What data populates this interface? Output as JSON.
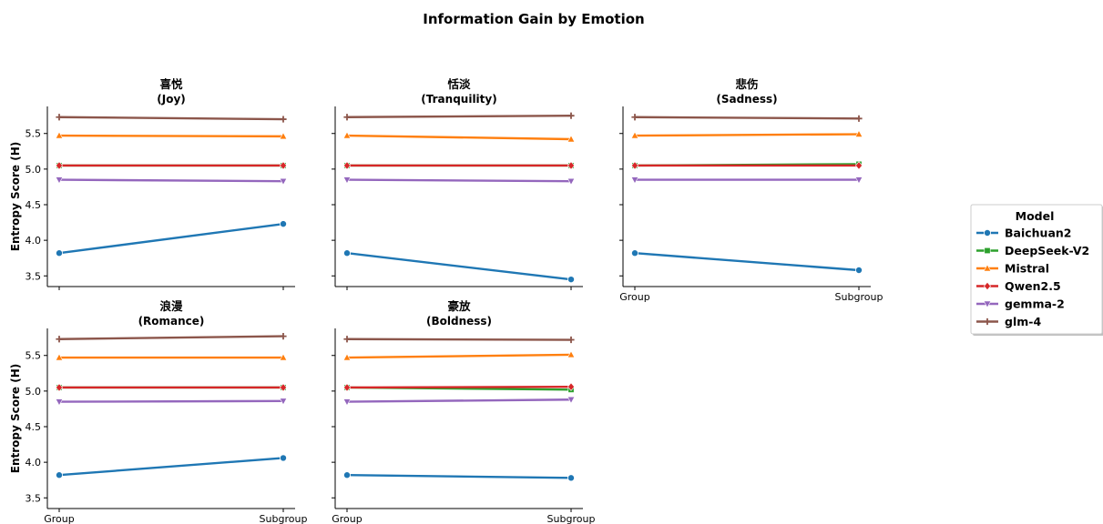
{
  "chart_data": {
    "type": "line",
    "title": "Information Gain by Emotion",
    "ylabel": "Entropy Score (H)",
    "categories": [
      "Group",
      "Subgroup"
    ],
    "ylim": [
      3.35,
      5.88
    ],
    "yticks": [
      3.5,
      4.0,
      4.5,
      5.0,
      5.5
    ],
    "yticklabels": [
      "3.5",
      "4.0",
      "4.5",
      "5.0",
      "5.5"
    ],
    "grid": false,
    "legend": {
      "title": "Model",
      "placement": "center-right",
      "entries": [
        "Baichuan2",
        "DeepSeek-V2",
        "Mistral",
        "Qwen2.5",
        "gemma-2",
        "glm-4"
      ]
    },
    "series_style": [
      {
        "name": "Baichuan2",
        "color": "#1f77b4",
        "marker": "circle"
      },
      {
        "name": "DeepSeek-V2",
        "color": "#2ca02c",
        "marker": "square"
      },
      {
        "name": "Mistral",
        "color": "#ff7f0e",
        "marker": "triangle-up"
      },
      {
        "name": "Qwen2.5",
        "color": "#d62728",
        "marker": "diamond"
      },
      {
        "name": "gemma-2",
        "color": "#9467bd",
        "marker": "triangle-down"
      },
      {
        "name": "glm-4",
        "color": "#8c564b",
        "marker": "plus"
      }
    ],
    "panels": [
      {
        "title_zh": "喜悦",
        "title_en": "(Joy)",
        "series": [
          {
            "name": "Baichuan2",
            "values": [
              3.82,
              4.23
            ]
          },
          {
            "name": "DeepSeek-V2",
            "values": [
              5.05,
              5.05
            ]
          },
          {
            "name": "Mistral",
            "values": [
              5.47,
              5.46
            ]
          },
          {
            "name": "Qwen2.5",
            "values": [
              5.05,
              5.05
            ]
          },
          {
            "name": "gemma-2",
            "values": [
              4.85,
              4.83
            ]
          },
          {
            "name": "glm-4",
            "values": [
              5.73,
              5.7
            ]
          }
        ]
      },
      {
        "title_zh": "恬淡",
        "title_en": "(Tranquility)",
        "series": [
          {
            "name": "Baichuan2",
            "values": [
              3.82,
              3.45
            ]
          },
          {
            "name": "DeepSeek-V2",
            "values": [
              5.05,
              5.05
            ]
          },
          {
            "name": "Mistral",
            "values": [
              5.47,
              5.42
            ]
          },
          {
            "name": "Qwen2.5",
            "values": [
              5.05,
              5.05
            ]
          },
          {
            "name": "gemma-2",
            "values": [
              4.85,
              4.83
            ]
          },
          {
            "name": "glm-4",
            "values": [
              5.73,
              5.75
            ]
          }
        ]
      },
      {
        "title_zh": "悲伤",
        "title_en": "(Sadness)",
        "series": [
          {
            "name": "Baichuan2",
            "values": [
              3.82,
              3.58
            ]
          },
          {
            "name": "DeepSeek-V2",
            "values": [
              5.05,
              5.07
            ]
          },
          {
            "name": "Mistral",
            "values": [
              5.47,
              5.49
            ]
          },
          {
            "name": "Qwen2.5",
            "values": [
              5.05,
              5.05
            ]
          },
          {
            "name": "gemma-2",
            "values": [
              4.85,
              4.85
            ]
          },
          {
            "name": "glm-4",
            "values": [
              5.73,
              5.71
            ]
          }
        ]
      },
      {
        "title_zh": "浪漫",
        "title_en": "(Romance)",
        "series": [
          {
            "name": "Baichuan2",
            "values": [
              3.82,
              4.06
            ]
          },
          {
            "name": "DeepSeek-V2",
            "values": [
              5.05,
              5.05
            ]
          },
          {
            "name": "Mistral",
            "values": [
              5.47,
              5.47
            ]
          },
          {
            "name": "Qwen2.5",
            "values": [
              5.05,
              5.05
            ]
          },
          {
            "name": "gemma-2",
            "values": [
              4.85,
              4.86
            ]
          },
          {
            "name": "glm-4",
            "values": [
              5.73,
              5.77
            ]
          }
        ]
      },
      {
        "title_zh": "豪放",
        "title_en": "(Boldness)",
        "series": [
          {
            "name": "Baichuan2",
            "values": [
              3.82,
              3.78
            ]
          },
          {
            "name": "DeepSeek-V2",
            "values": [
              5.05,
              5.02
            ]
          },
          {
            "name": "Mistral",
            "values": [
              5.47,
              5.51
            ]
          },
          {
            "name": "Qwen2.5",
            "values": [
              5.05,
              5.06
            ]
          },
          {
            "name": "gemma-2",
            "values": [
              4.85,
              4.88
            ]
          },
          {
            "name": "glm-4",
            "values": [
              5.73,
              5.72
            ]
          }
        ]
      }
    ]
  }
}
